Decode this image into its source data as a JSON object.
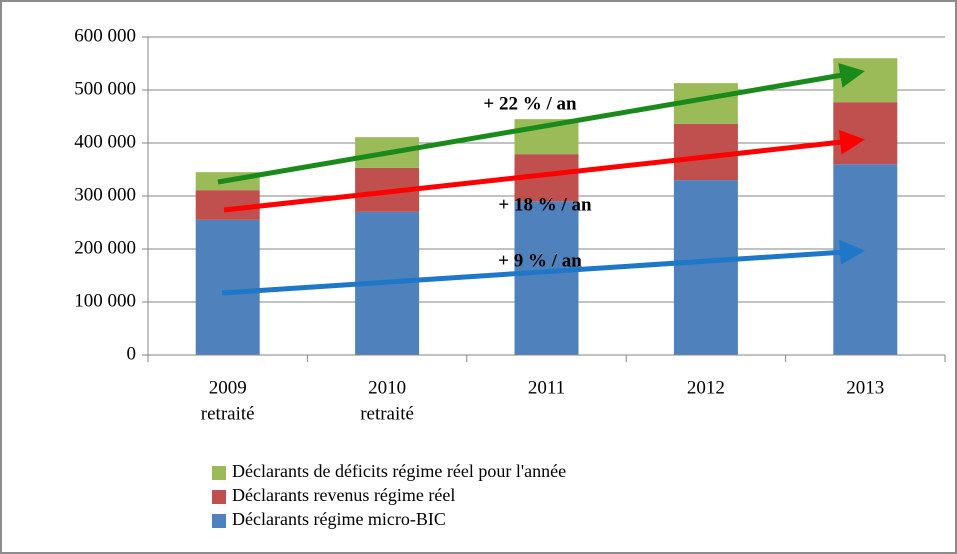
{
  "chart_data": {
    "type": "stacked_bar",
    "categories": [
      [
        "2009",
        "retraité"
      ],
      [
        "2010",
        "retraité"
      ],
      [
        "2011"
      ],
      [
        "2012"
      ],
      [
        "2013"
      ]
    ],
    "series": [
      {
        "name": "Déclarants régime micro-BIC",
        "color": "#4f81bd",
        "values": [
          255000,
          270000,
          290000,
          330000,
          360000
        ]
      },
      {
        "name": "Déclarants revenus régime réel",
        "color": "#c0504d",
        "values": [
          56000,
          83000,
          89000,
          106000,
          117000
        ]
      },
      {
        "name": "Déclarants de déficits régime réel pour l'année",
        "color": "#9bbb59",
        "values": [
          34000,
          58000,
          66000,
          77000,
          83000
        ]
      }
    ],
    "ylim": [
      0,
      600000
    ],
    "yticks": [
      0,
      {
        "value": 100000,
        "label": "100 000"
      },
      {
        "value": 200000,
        "label": "200 000"
      },
      {
        "value": 300000,
        "label": "300 000"
      },
      {
        "value": 400000,
        "label": "400 000"
      },
      {
        "value": 500000,
        "label": "500 000"
      },
      {
        "value": 600000,
        "label": "600 000"
      }
    ],
    "grid": true,
    "legend": "bottom",
    "annotations": [
      {
        "text": "+ 22 % / an",
        "color": "#1a8a1a"
      },
      {
        "text": "+ 18 % / an",
        "color": "#ff0000"
      },
      {
        "text": "+ 9 % / an",
        "color": "#1f77c8"
      }
    ]
  }
}
